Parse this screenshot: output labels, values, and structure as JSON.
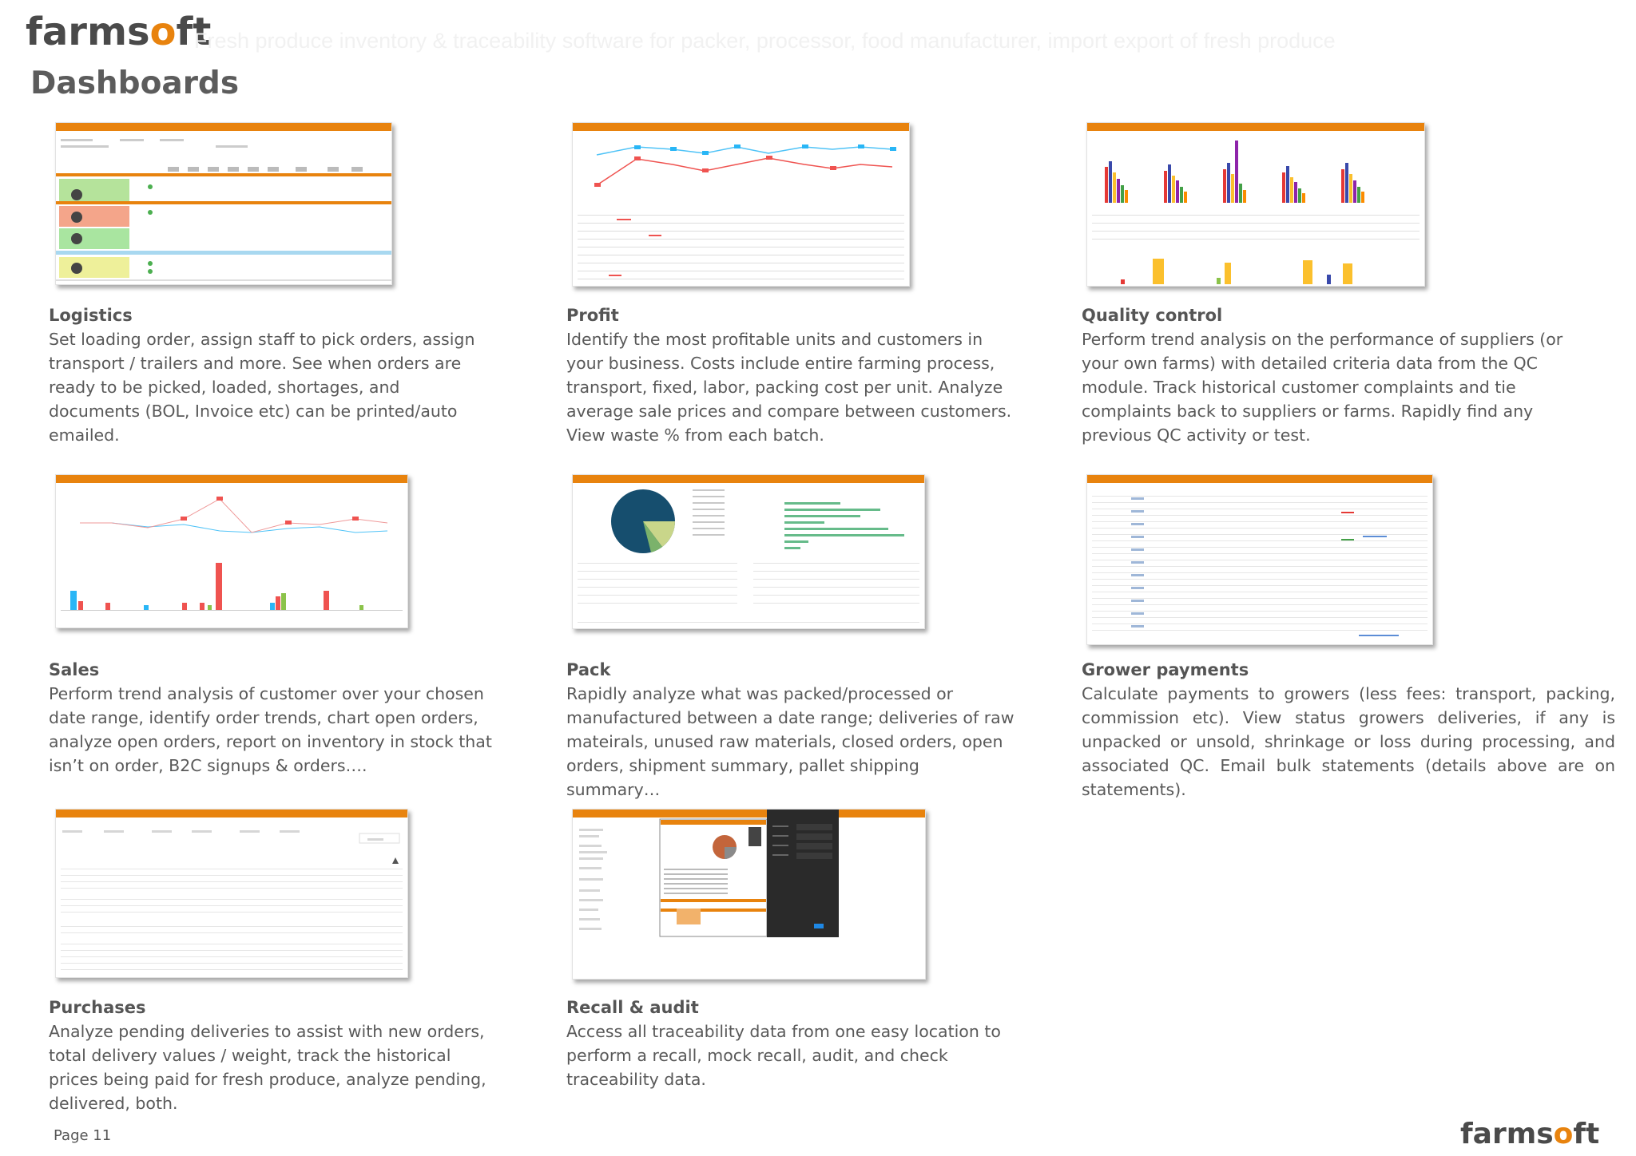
{
  "brand": {
    "prefix": "farms",
    "o": "o",
    "suffix": "ft"
  },
  "tagline": "Fresh produce inventory & traceability software for packer, processor, food manufacturer, import export of fresh produce",
  "page_title": "Dashboards",
  "cards": [
    {
      "title": "Logistics",
      "description": "Set loading order, assign staff to pick orders, assign transport / trailers and more. See when orders are ready to be picked, loaded, shortages, and documents (BOL, Invoice etc) can be printed/auto emailed."
    },
    {
      "title": "Profit",
      "description": "Identify the most profitable units and customers in your business. Costs include entire farming process, transport, fixed, labor, packing cost per unit. Analyze average sale prices and compare between customers. View waste % from each batch."
    },
    {
      "title": "Quality control",
      "description": "Perform trend analysis on the performance of suppliers (or your own farms) with detailed criteria data from the QC module. Track historical customer complaints and tie complaints back to suppliers or farms. Rapidly find any previous QC activity or test."
    },
    {
      "title": "Sales",
      "description": "Perform trend analysis of customer over your chosen date range, identify order trends, chart open orders, analyze open orders, report on inventory in stock that isn’t on order, B2C signups & orders…."
    },
    {
      "title": "Pack",
      "description": "Rapidly analyze what was packed/processed or manufactured between a date range; deliveries of raw mateirals, unused raw materials, closed orders, open orders, shipment summary, pallet shipping summary…"
    },
    {
      "title": "Grower payments",
      "description": "Calculate payments to growers (less fees: transport, packing, commission etc). View status growers deliveries, if any is unpacked or unsold, shrinkage or loss during processing, and associated QC. Email bulk statements (details above are on statements)."
    },
    {
      "title": "Purchases",
      "description": "Analyze pending deliveries to assist with new orders, total delivery values / weight, track the historical prices being paid for fresh produce, analyze pending, delivered, both."
    },
    {
      "title": "Recall & audit",
      "description": "Access all traceability data from one easy location to perform a recall, mock recall, audit, and check traceability data."
    }
  ],
  "footer": {
    "page_label": "Page 11"
  },
  "colors": {
    "accent": "#e8830e",
    "text": "#595959",
    "title": "#5c5c5c"
  }
}
